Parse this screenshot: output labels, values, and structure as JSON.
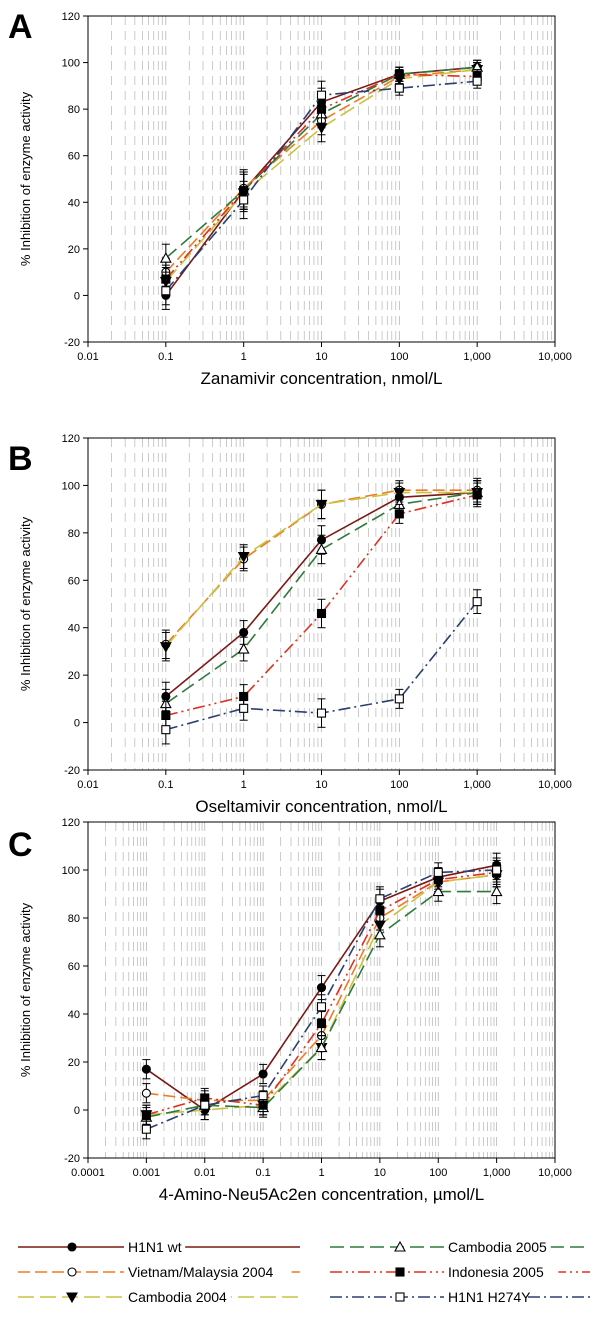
{
  "colors": {
    "H1N1 wt": "#7a1a14",
    "Vietnam/Malaysia 2004": "#f07a22",
    "Cambodia 2004": "#c9c341",
    "Cambodia 2005": "#2e7a3a",
    "Indonesia 2005": "#e03020",
    "H1N1 H274Y": "#2a3f72"
  },
  "legend": [
    {
      "label": "H1N1 wt",
      "marker": "filled-circle"
    },
    {
      "label": "Vietnam/Malaysia 2004",
      "marker": "open-circle"
    },
    {
      "label": "Cambodia 2004",
      "marker": "filled-triangle-down"
    },
    {
      "label": "Cambodia 2005",
      "marker": "open-triangle-up"
    },
    {
      "label": "Indonesia 2005",
      "marker": "filled-square"
    },
    {
      "label": "H1N1 H274Y",
      "marker": "open-square"
    }
  ],
  "chart_data": [
    {
      "panel": "A",
      "type": "line",
      "xscale": "log",
      "xlabel": "Zanamivir concentration, nmol/L",
      "ylabel": "% Inhibition of enzyme activity",
      "xlim": [
        0.01,
        10000
      ],
      "ylim": [
        -20,
        120
      ],
      "xticks": [
        "0.01",
        "0.1",
        "1",
        "10",
        "100",
        "1,000",
        "10,000"
      ],
      "yticks": [
        "-20",
        "0",
        "20",
        "40",
        "60",
        "80",
        "100",
        "120"
      ],
      "x": [
        0.1,
        1,
        10,
        100,
        1000
      ],
      "series": [
        {
          "name": "H1N1 wt",
          "values": [
            0,
            45,
            83,
            95,
            98
          ]
        },
        {
          "name": "Vietnam/Malaysia 2004",
          "values": [
            10,
            46,
            75,
            94,
            97
          ]
        },
        {
          "name": "Cambodia 2004",
          "values": [
            6,
            44,
            72,
            93,
            97
          ]
        },
        {
          "name": "Cambodia 2005",
          "values": [
            16,
            45,
            78,
            95,
            98
          ]
        },
        {
          "name": "Indonesia 2005",
          "values": [
            7,
            45,
            80,
            95,
            94
          ]
        },
        {
          "name": "H1N1 H274Y",
          "values": [
            2,
            41,
            86,
            89,
            92
          ]
        }
      ]
    },
    {
      "panel": "B",
      "type": "line",
      "xscale": "log",
      "xlabel": "Oseltamivir concentration, nmol/L",
      "ylabel": "% Inhibition of enzyme activity",
      "xlim": [
        0.01,
        10000
      ],
      "ylim": [
        -20,
        120
      ],
      "xticks": [
        "0.01",
        "0.1",
        "1",
        "10",
        "100",
        "1,000",
        "10,000"
      ],
      "yticks": [
        "-20",
        "0",
        "20",
        "40",
        "60",
        "80",
        "100",
        "120"
      ],
      "x": [
        0.1,
        1,
        10,
        100,
        1000
      ],
      "series": [
        {
          "name": "H1N1 wt",
          "values": [
            11,
            38,
            77,
            95,
            97
          ]
        },
        {
          "name": "Vietnam/Malaysia 2004",
          "values": [
            33,
            69,
            92,
            98,
            98
          ]
        },
        {
          "name": "Cambodia 2004",
          "values": [
            32,
            70,
            92,
            97,
            97
          ]
        },
        {
          "name": "Cambodia 2005",
          "values": [
            8,
            31,
            73,
            92,
            97
          ]
        },
        {
          "name": "Indonesia 2005",
          "values": [
            3,
            11,
            46,
            88,
            96
          ]
        },
        {
          "name": "H1N1 H274Y",
          "values": [
            -3,
            6,
            4,
            10,
            51
          ]
        }
      ]
    },
    {
      "panel": "C",
      "type": "line",
      "xscale": "log",
      "xlabel": "4-Amino-Neu5Ac2en concentration, µmol/L",
      "ylabel": "% Inhibition of enzyme activity",
      "xlim": [
        0.0001,
        10000
      ],
      "ylim": [
        -20,
        120
      ],
      "xticks": [
        "0.0001",
        "0.001",
        "0.01",
        "0.1",
        "1",
        "10",
        "100",
        "1,000",
        "10,000"
      ],
      "yticks": [
        "-20",
        "0",
        "20",
        "40",
        "60",
        "80",
        "100",
        "120"
      ],
      "x": [
        0.001,
        0.01,
        0.1,
        1,
        10,
        100,
        1000
      ],
      "series": [
        {
          "name": "H1N1 wt",
          "values": [
            17,
            0,
            15,
            51,
            87,
            97,
            102
          ]
        },
        {
          "name": "Vietnam/Malaysia 2004",
          "values": [
            7,
            4,
            4,
            31,
            80,
            95,
            98
          ]
        },
        {
          "name": "Cambodia 2004",
          "values": [
            -2,
            0,
            2,
            26,
            77,
            95,
            98
          ]
        },
        {
          "name": "Cambodia 2005",
          "values": [
            -3,
            2,
            1,
            26,
            73,
            91,
            91
          ]
        },
        {
          "name": "Indonesia 2005",
          "values": [
            -2,
            5,
            2,
            36,
            83,
            96,
            99
          ]
        },
        {
          "name": "H1N1 H274Y",
          "values": [
            -8,
            2,
            6,
            43,
            88,
            99,
            100
          ]
        }
      ]
    }
  ]
}
